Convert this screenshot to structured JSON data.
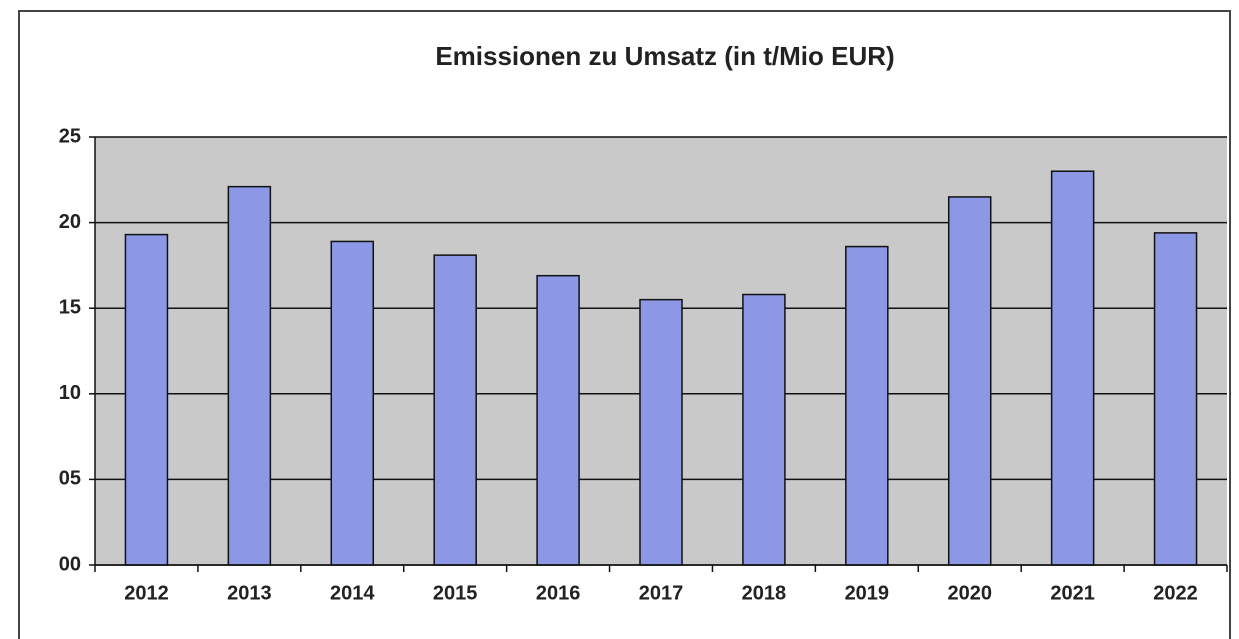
{
  "chart_data": {
    "type": "bar",
    "title": "Emissionen zu Umsatz (in t/Mio EUR)",
    "categories": [
      "2012",
      "2013",
      "2014",
      "2015",
      "2016",
      "2017",
      "2018",
      "2019",
      "2020",
      "2021",
      "2022"
    ],
    "values": [
      19.3,
      22.1,
      18.9,
      18.1,
      16.9,
      15.5,
      15.8,
      18.6,
      21.5,
      23.0,
      19.4
    ],
    "color": "#8c98e6",
    "ylim": [
      0,
      25
    ],
    "yticks": [
      {
        "value": 0,
        "label": "00"
      },
      {
        "value": 5,
        "label": "05"
      },
      10,
      15,
      20,
      25
    ],
    "grid": true
  }
}
